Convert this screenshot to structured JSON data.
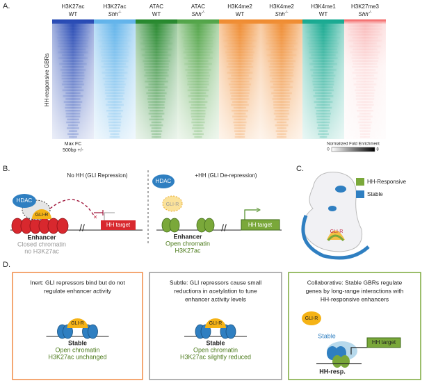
{
  "panel_a": {
    "label": "A.",
    "y_label": "HH-responsive GBRs",
    "columns": [
      {
        "mark": "H3K27ac",
        "genotype": "WT",
        "color": "#2447b3"
      },
      {
        "mark": "H3K27ac",
        "genotype": "Shh",
        "genotype_sup": "-/-",
        "color": "#5fb2ea"
      },
      {
        "mark": "ATAC",
        "genotype": "WT",
        "color": "#23862a"
      },
      {
        "mark": "ATAC",
        "genotype": "Shh",
        "genotype_sup": "-/-",
        "color": "#4fa345"
      },
      {
        "mark": "H3K4me2",
        "genotype": "WT",
        "color": "#ef8a2e"
      },
      {
        "mark": "H3K4me2",
        "genotype": "Shh",
        "genotype_sup": "-/-",
        "color": "#ef8a2e"
      },
      {
        "mark": "H3K4me1",
        "genotype": "WT",
        "color": "#14a88f"
      },
      {
        "mark": "H3K27me3",
        "genotype": "Shh",
        "genotype_sup": "-/-",
        "color": "#f25555"
      }
    ],
    "footer": [
      "Max FC",
      "500bp +/-"
    ],
    "scale": {
      "title": "Normalized Fold Enrichment",
      "min": 0,
      "max": 8
    }
  },
  "panel_b": {
    "label": "B.",
    "left": {
      "title": "No HH (GLI Repression)",
      "hdac": "HDAC",
      "gli": "GLI-R",
      "target": "HH target",
      "lines": [
        "Enhancer",
        "Closed chromatin",
        "no H3K27ac"
      ]
    },
    "right": {
      "title": "+HH (GLI De-repression)",
      "hdac": "HDAC",
      "gli": "GLI-R",
      "target": "HH target",
      "lines": [
        "Enhancer",
        "Open chromatin",
        "H3K27ac"
      ]
    }
  },
  "panel_c": {
    "label": "C.",
    "legend": [
      "HH-Responsive",
      "Stable"
    ],
    "gli": "GLI-R"
  },
  "panel_d": {
    "label": "D.",
    "boxes": [
      {
        "text": [
          "Inert: GLI repressors bind but do not",
          "regulate enhancer activity"
        ],
        "gli": "GLI-R",
        "lines": [
          "Stable",
          "Open chromatin",
          "H3K27ac unchanged"
        ]
      },
      {
        "text": [
          "Subtle: GLI repressors cause small",
          "reductions in acetylation to tune",
          "enhancer activity levels"
        ],
        "gli": "GLI-R",
        "lines": [
          "Stable",
          "Open chromatin",
          "H3K27ac silghtly reduced"
        ]
      },
      {
        "text": [
          "Collaborative: Stable GBRs regulate",
          "genes by long-range interactions  with",
          "HH-responsive enhancers"
        ],
        "gli": "GLI-R",
        "stable": "Stable",
        "target": "HH target",
        "resp": "HH-resp."
      }
    ]
  }
}
